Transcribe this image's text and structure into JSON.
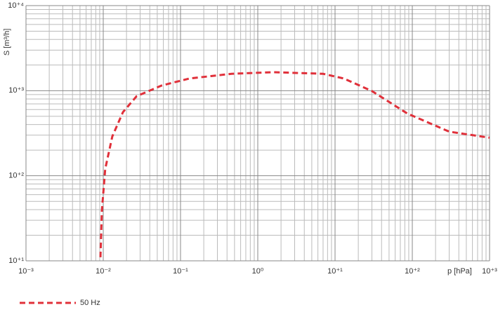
{
  "chart_data": {
    "type": "line",
    "x_label": "p [hPa]",
    "y_label": "S [m³/h]",
    "x_log": true,
    "y_log": true,
    "grid": true,
    "xlim": [
      0.001,
      1000
    ],
    "ylim": [
      10,
      10000
    ],
    "xticks": [
      {
        "value": 0.001,
        "label": "10⁻³"
      },
      {
        "value": 0.01,
        "label": "10⁻²"
      },
      {
        "value": 0.1,
        "label": "10⁻¹"
      },
      {
        "value": 1,
        "label": "10⁰"
      },
      {
        "value": 10,
        "label": "10⁺¹"
      },
      {
        "value": 100,
        "label": "10⁺²"
      },
      {
        "value": 1000,
        "label": "10⁺³"
      }
    ],
    "yticks": [
      {
        "value": 10,
        "label": "10⁺¹"
      },
      {
        "value": 100,
        "label": "10⁺²"
      },
      {
        "value": 1000,
        "label": "10⁺³"
      },
      {
        "value": 10000,
        "label": "10⁺⁴"
      }
    ],
    "x": [
      0.0092,
      0.0096,
      0.0106,
      0.0131,
      0.018,
      0.027,
      0.057,
      0.13,
      0.46,
      1.6,
      7,
      13,
      30,
      86,
      300,
      1000
    ],
    "series": [
      {
        "name": "50 Hz",
        "color": "#e0303a",
        "values": [
          11,
          39,
          120,
          290,
          560,
          860,
          1150,
          1390,
          1580,
          1650,
          1580,
          1390,
          990,
          540,
          330,
          280
        ]
      }
    ]
  }
}
